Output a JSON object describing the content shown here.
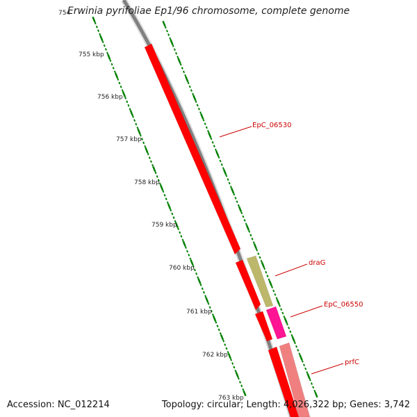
{
  "title": "Erwinia pyrifoliae Ep1/96 chromosome, complete genome",
  "scale_top_label": "754",
  "scale_labels": [
    "755 kbp",
    "756 kbp",
    "757 kbp",
    "758 kbp",
    "759 kbp",
    "760 kbp",
    "761 kbp",
    "762 kbp",
    "763 kbp"
  ],
  "genes": [
    {
      "name": "EpC_06530",
      "labelled": true,
      "color": "#ff0000"
    },
    {
      "name": "",
      "labelled": false,
      "color": "#ff0000"
    },
    {
      "name": "draG",
      "labelled": true,
      "color": "#bdb76b"
    },
    {
      "name": "",
      "labelled": false,
      "color": "#ff0000"
    },
    {
      "name": "EpC_06550",
      "labelled": true,
      "color": "#ff1493"
    },
    {
      "name": "",
      "labelled": false,
      "color": "#ff0000"
    },
    {
      "name": "prfC",
      "labelled": true,
      "color": "#f08080"
    }
  ],
  "footer": {
    "accession": "Accession: NC_012214",
    "summary": "Topology: circular; Length: 4,026,322 bp; Genes: 3,742"
  },
  "colors": {
    "backbone": "#808080",
    "ticks": "#008000",
    "label_lines": "#cc0000"
  }
}
